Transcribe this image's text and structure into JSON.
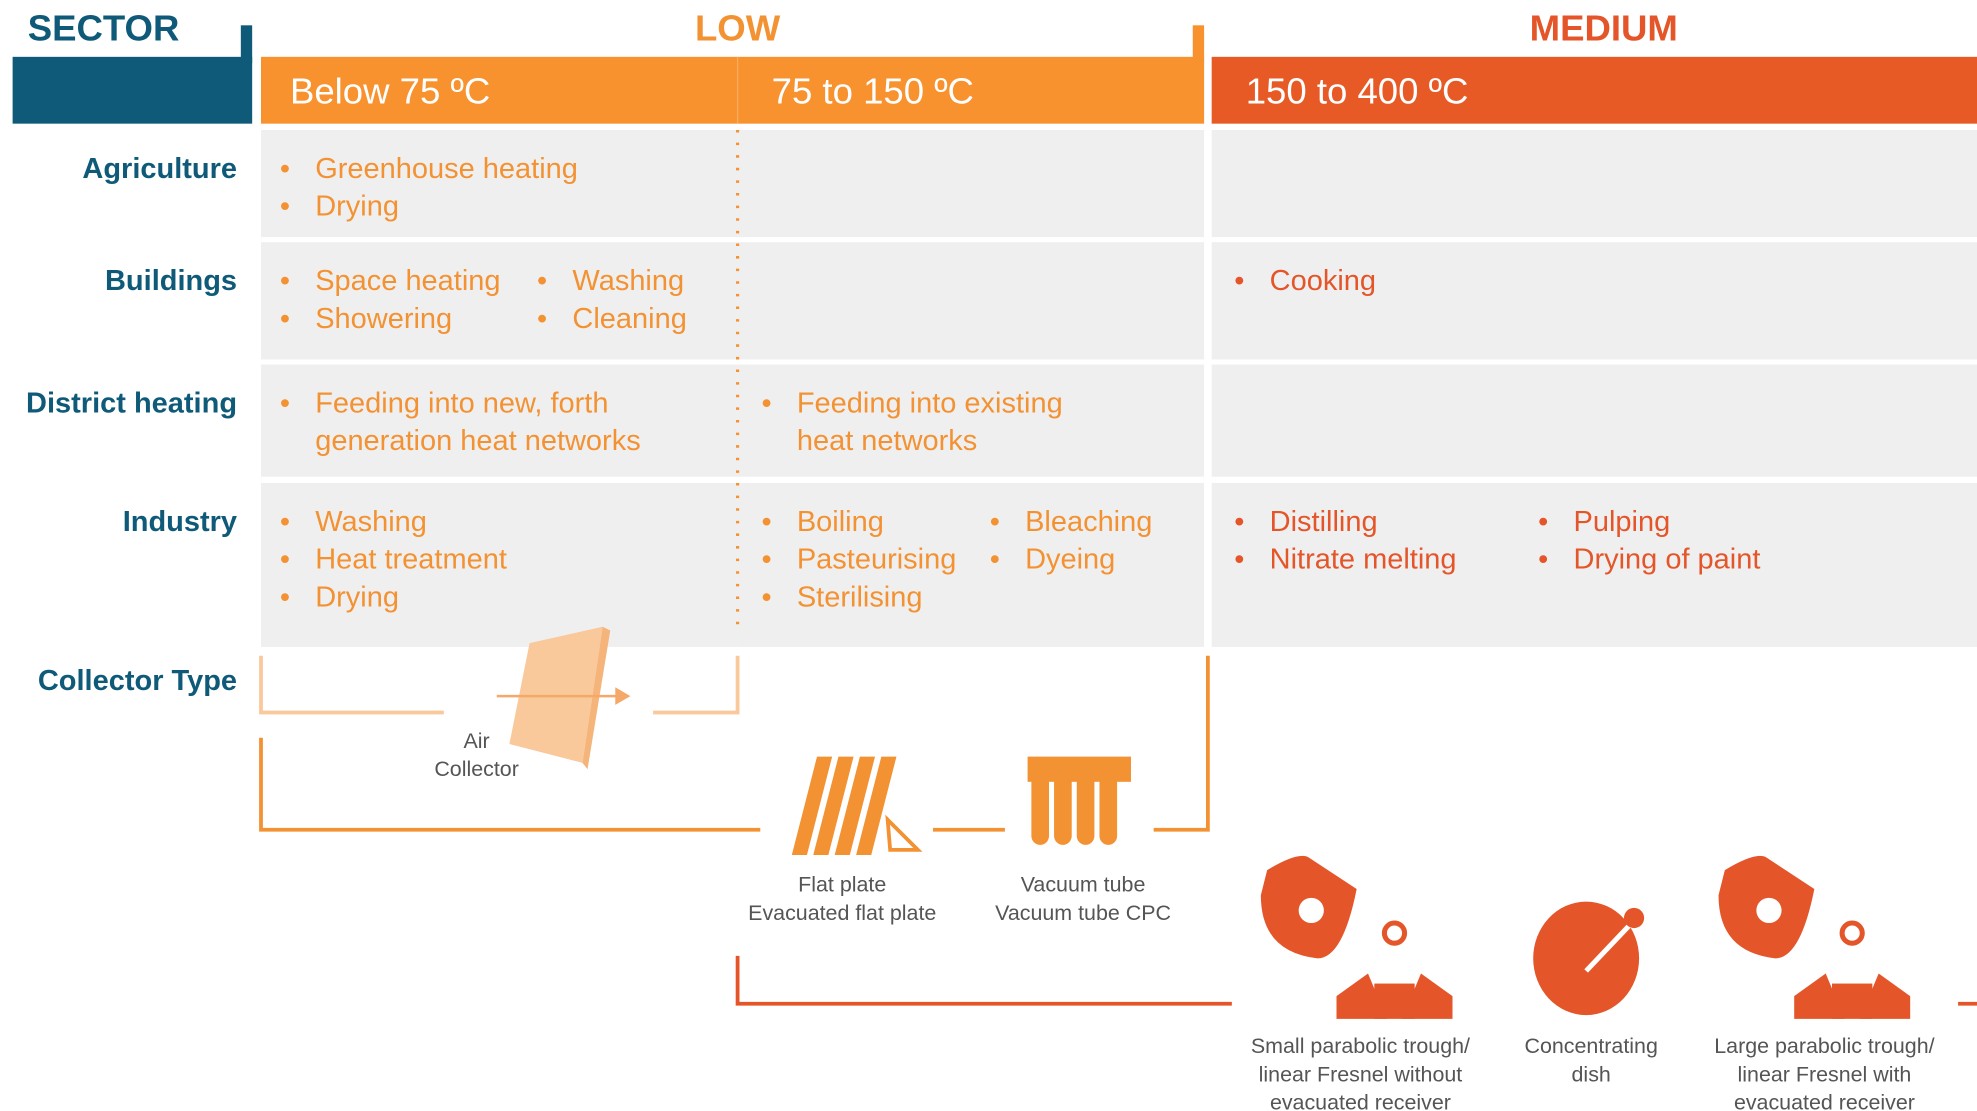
{
  "header": {
    "sector": "SECTOR",
    "low": "LOW",
    "medium": "MEDIUM",
    "ranges": [
      "Below 75 ºC",
      "75 to 150 ºC",
      "150 to 400 ºC"
    ]
  },
  "rows": [
    {
      "label": "Agriculture",
      "cells": [
        [
          [
            [
              "Greenhouse heating"
            ],
            [
              "Drying"
            ]
          ]
        ],
        [],
        []
      ]
    },
    {
      "label": "Buildings",
      "cells": [
        [
          [
            [
              "Space heating"
            ],
            [
              "Showering"
            ]
          ],
          [
            [
              "Washing"
            ],
            [
              "Cleaning"
            ]
          ]
        ],
        [],
        [
          [
            [
              "Cooking"
            ]
          ]
        ]
      ]
    },
    {
      "label": "District heating",
      "cells": [
        [
          [
            [
              "Feeding into new, forth",
              "generation heat networks"
            ]
          ]
        ],
        [
          [
            [
              "Feeding into existing",
              "heat networks"
            ]
          ]
        ],
        []
      ]
    },
    {
      "label": "Industry",
      "cells": [
        [
          [
            [
              "Washing"
            ],
            [
              "Heat treatment"
            ],
            [
              "Drying"
            ]
          ]
        ],
        [
          [
            [
              "Boiling"
            ],
            [
              "Pasteurising"
            ],
            [
              "Sterilising"
            ]
          ],
          [
            [
              "Bleaching"
            ],
            [
              "Dyeing"
            ]
          ]
        ],
        [
          [
            [
              "Distilling"
            ],
            [
              "Nitrate melting"
            ]
          ],
          [
            [
              "Pulping"
            ],
            [
              "Drying of paint"
            ]
          ]
        ]
      ]
    }
  ],
  "collector_type": "Collector Type",
  "collectors": [
    [
      "Air",
      "Collector"
    ],
    [
      "Flat plate",
      "Evacuated flat plate"
    ],
    [
      "Vacuum tube",
      "Vacuum tube CPC"
    ],
    [
      "Small parabolic trough/",
      "linear Fresnel without",
      "evacuated receiver"
    ],
    [
      "Concentrating",
      "dish"
    ],
    [
      "Large parabolic trough/",
      "linear Fresnel with",
      "evacuated receiver"
    ]
  ]
}
